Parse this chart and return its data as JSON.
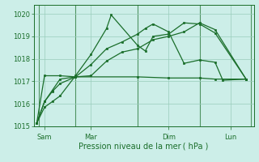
{
  "background_color": "#cceee8",
  "grid_color": "#99ccbb",
  "line_color": "#1a6e2a",
  "xlabel": "Pression niveau de la mer ( hPa )",
  "ylim": [
    1015,
    1020.4
  ],
  "xlim": [
    -0.2,
    14.0
  ],
  "ytick_vals": [
    1015,
    1016,
    1017,
    1018,
    1019,
    1020
  ],
  "xtick_positions": [
    0.5,
    3.5,
    8.5,
    12.5
  ],
  "xtick_labels": [
    "Sam",
    "Mar",
    "Dim",
    "Lun"
  ],
  "vlines": [
    0.15,
    2.5,
    6.5,
    10.5,
    13.8
  ],
  "series1_x": [
    0,
    0.5,
    1.0,
    1.5,
    2.5,
    3.5,
    4.5,
    4.8,
    6.5,
    7.0,
    7.5,
    8.5,
    9.5,
    10.5,
    11.5,
    13.5
  ],
  "series1_y": [
    1015.15,
    1015.85,
    1016.1,
    1016.35,
    1017.25,
    1018.2,
    1019.35,
    1019.95,
    1018.6,
    1018.35,
    1019.0,
    1019.1,
    1019.6,
    1019.55,
    1019.15,
    1017.1
  ],
  "series2_x": [
    0,
    0.5,
    1.0,
    1.5,
    2.5,
    3.5,
    4.5,
    5.5,
    6.5,
    7.5,
    8.5,
    9.5,
    10.5,
    11.5,
    13.5
  ],
  "series2_y": [
    1015.15,
    1016.1,
    1016.6,
    1017.1,
    1017.2,
    1017.25,
    1017.9,
    1018.3,
    1018.45,
    1018.85,
    1019.0,
    1019.2,
    1019.6,
    1019.3,
    1017.1
  ],
  "series3_x": [
    0,
    0.5,
    1.5,
    2.5,
    6.5,
    8.5,
    10.5,
    11.5,
    13.5
  ],
  "series3_y": [
    1015.15,
    1017.25,
    1017.25,
    1017.2,
    1017.2,
    1017.15,
    1017.15,
    1017.1,
    1017.1
  ],
  "series4_x": [
    0,
    0.5,
    1.0,
    1.5,
    2.5,
    3.5,
    4.5,
    5.5,
    6.5,
    7.0,
    7.5,
    8.5,
    9.5,
    10.5,
    11.5,
    12.0,
    13.5
  ],
  "series4_y": [
    1015.15,
    1016.1,
    1016.55,
    1016.9,
    1017.2,
    1017.75,
    1018.45,
    1018.75,
    1019.1,
    1019.35,
    1019.55,
    1019.2,
    1017.8,
    1017.95,
    1017.85,
    1017.05,
    1017.1
  ],
  "figsize": [
    3.2,
    2.0
  ],
  "dpi": 100
}
